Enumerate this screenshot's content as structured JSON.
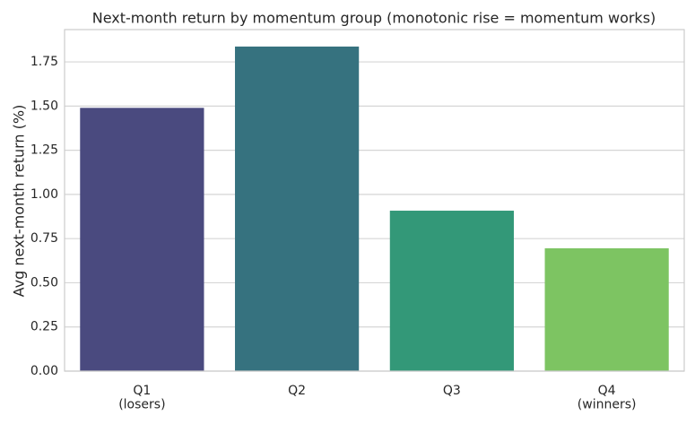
{
  "chart_data": {
    "type": "bar",
    "title": "Next-month return by momentum group (monotonic rise = momentum works)",
    "ylabel": "Avg next-month return (%)",
    "categories": [
      "Q1\n(losers)",
      "Q2",
      "Q3",
      "Q4\n(winners)"
    ],
    "values": [
      1.49,
      1.837,
      0.908,
      0.695
    ],
    "colors": [
      "#4a4a7f",
      "#36727f",
      "#339878",
      "#7dc462"
    ],
    "ylim": [
      0,
      1.933
    ],
    "yticks": [
      {
        "value": 0,
        "label": "0.00"
      },
      {
        "value": 0.25,
        "label": "0.25"
      },
      {
        "value": 0.5,
        "label": "0.50"
      },
      {
        "value": 0.75,
        "label": "0.75"
      },
      {
        "value": 1,
        "label": "1.00"
      },
      {
        "value": 1.25,
        "label": "1.25"
      },
      {
        "value": 1.5,
        "label": "1.50"
      },
      {
        "value": 1.75,
        "label": "1.75"
      }
    ],
    "grid": true
  }
}
